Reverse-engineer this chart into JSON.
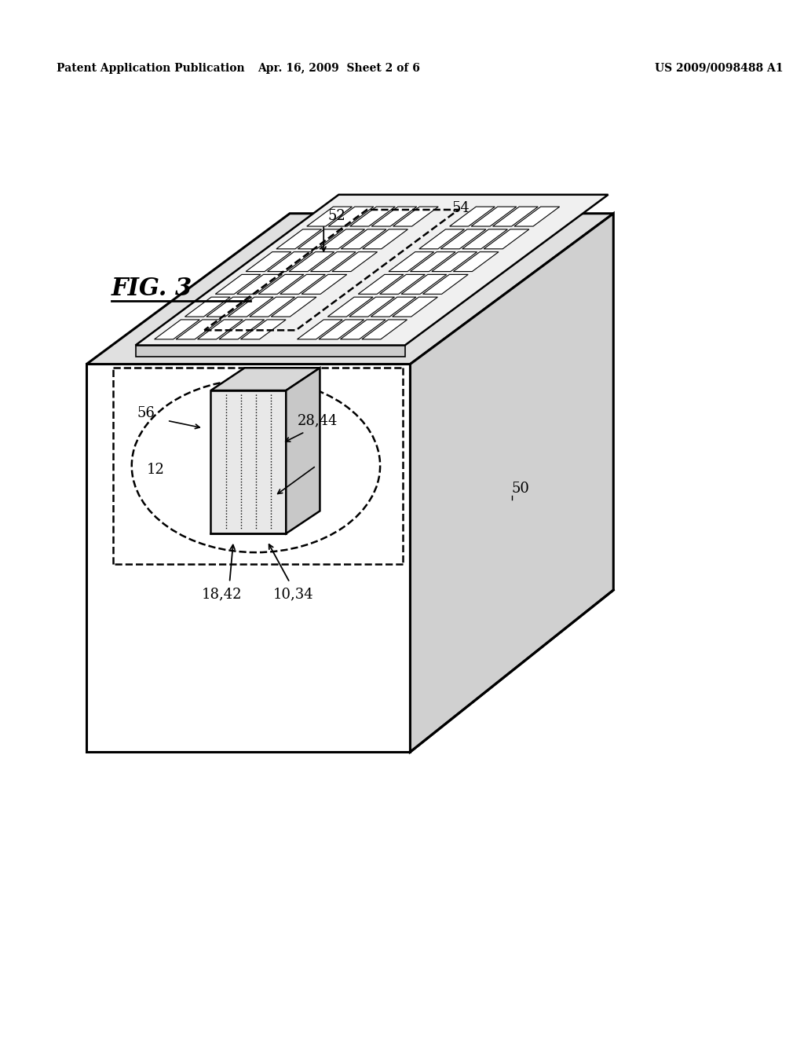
{
  "background_color": "#ffffff",
  "header_left": "Patent Application Publication",
  "header_center": "Apr. 16, 2009  Sheet 2 of 6",
  "header_right": "US 2009/0098488 A1",
  "fig_label": "FIG. 3"
}
